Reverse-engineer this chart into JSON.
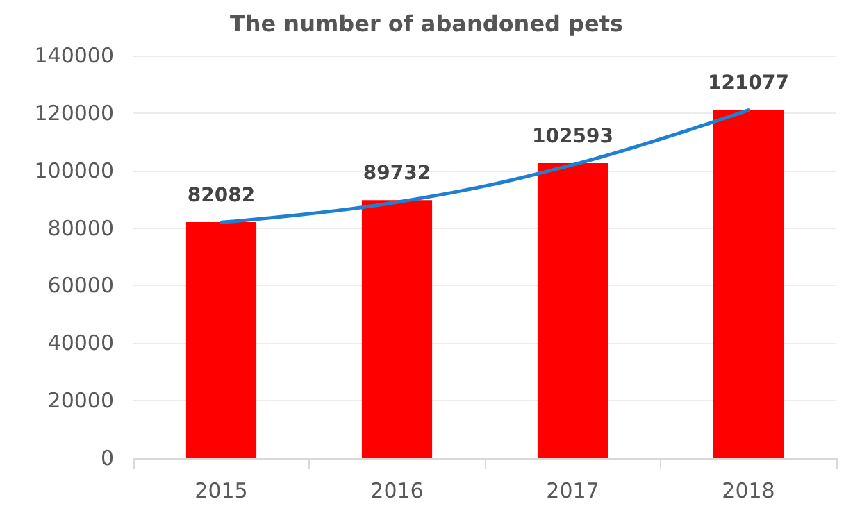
{
  "chart_data": {
    "type": "bar",
    "title": "The number of abandoned pets",
    "categories": [
      "2015",
      "2016",
      "2017",
      "2018"
    ],
    "series": [
      {
        "color": "#ff0000",
        "values": [
          82082,
          89732,
          102593,
          121077
        ],
        "value_labels": [
          "82082",
          "89732",
          "102593",
          "121077"
        ]
      },
      {
        "type": "line",
        "color": "#1f7fd0",
        "values": [
          82000,
          89000,
          102000,
          121000
        ],
        "marker": "none"
      }
    ],
    "ylim": [
      0,
      140000
    ],
    "yticks": [
      0,
      20000,
      40000,
      60000,
      80000,
      100000,
      120000,
      140000
    ],
    "grid": "y"
  }
}
